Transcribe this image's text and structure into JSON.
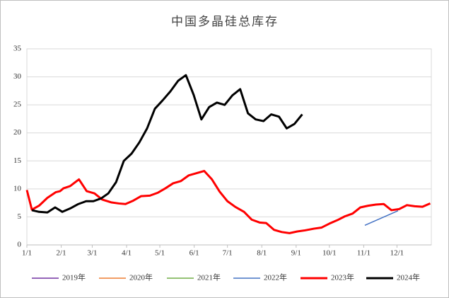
{
  "chart_data": {
    "type": "line",
    "title": "中国多晶硅总库存",
    "xlim": [
      1,
      366
    ],
    "xticks": [
      {
        "value": 1,
        "label": "1/1"
      },
      {
        "value": 32,
        "label": "2/1"
      },
      {
        "value": 60,
        "label": "3/1"
      },
      {
        "value": 91,
        "label": "4/1"
      },
      {
        "value": 121,
        "label": "5/1"
      },
      {
        "value": 152,
        "label": "6/1"
      },
      {
        "value": 182,
        "label": "7/1"
      },
      {
        "value": 213,
        "label": "8/1"
      },
      {
        "value": 244,
        "label": "9/1"
      },
      {
        "value": 274,
        "label": "10/1"
      },
      {
        "value": 305,
        "label": "11/1"
      },
      {
        "value": 335,
        "label": "12/1"
      }
    ],
    "ylim": [
      0,
      35
    ],
    "yticks": [
      0,
      5,
      10,
      15,
      20,
      25,
      30,
      35
    ],
    "grid": true,
    "legend": "bottom",
    "series": [
      {
        "name": "2019年",
        "color": "#7030a0",
        "x": [],
        "values": []
      },
      {
        "name": "2020年",
        "color": "#ed7d31",
        "x": [],
        "values": []
      },
      {
        "name": "2021年",
        "color": "#70ad47",
        "x": [],
        "values": []
      },
      {
        "name": "2022年",
        "color": "#4472c4",
        "x": [
          306,
          336
        ],
        "values": [
          3.5,
          6.1
        ]
      },
      {
        "name": "2023年",
        "color": "#ff0000",
        "x": [
          1,
          5.5,
          12,
          19.5,
          27,
          31,
          34,
          40,
          48,
          55,
          62,
          69,
          77,
          84,
          90,
          97,
          104,
          112,
          119,
          126,
          133,
          140,
          147,
          154,
          161,
          168,
          175,
          182,
          189,
          197,
          204,
          211,
          217,
          224,
          231,
          238,
          245,
          252,
          260,
          267,
          274,
          281,
          288,
          295,
          302,
          309,
          316,
          323,
          330,
          337,
          344,
          351,
          358,
          365
        ],
        "values": [
          9.8,
          6.3,
          7.0,
          8.4,
          9.4,
          9.6,
          10.1,
          10.5,
          11.7,
          9.6,
          9.2,
          8.1,
          7.6,
          7.4,
          7.3,
          7.9,
          8.7,
          8.8,
          9.3,
          10.1,
          11.0,
          11.4,
          12.4,
          12.8,
          13.2,
          11.7,
          9.5,
          7.8,
          6.8,
          5.9,
          4.5,
          4.0,
          3.9,
          2.7,
          2.3,
          2.1,
          2.4,
          2.6,
          2.9,
          3.1,
          3.8,
          4.4,
          5.1,
          5.6,
          6.7,
          7.0,
          7.2,
          7.3,
          6.2,
          6.4,
          7.1,
          6.9,
          6.8,
          7.4
        ]
      },
      {
        "name": "2024年",
        "color": "#000000",
        "x": [
          5.5,
          12,
          19.5,
          26.5,
          33,
          40,
          47.5,
          54.5,
          61,
          68,
          74.5,
          81.5,
          88.5,
          95.5,
          102.5,
          109.5,
          116.5,
          123.5,
          130.5,
          137.5,
          144.5,
          151.5,
          158.5,
          165.5,
          172.5,
          179.5,
          186.5,
          193.5,
          200.5,
          207.5,
          214.5,
          221.5,
          228.5,
          235.5,
          242.5,
          249.5
        ],
        "values": [
          6.2,
          5.9,
          5.8,
          6.7,
          5.9,
          6.5,
          7.3,
          7.8,
          7.8,
          8.3,
          9.2,
          11.2,
          15.0,
          16.3,
          18.3,
          20.8,
          24.3,
          25.8,
          27.4,
          29.3,
          30.3,
          26.8,
          22.4,
          24.6,
          25.4,
          25.0,
          26.7,
          27.8,
          23.5,
          22.4,
          22.1,
          23.3,
          22.9,
          20.8,
          21.6,
          23.3
        ]
      }
    ]
  }
}
